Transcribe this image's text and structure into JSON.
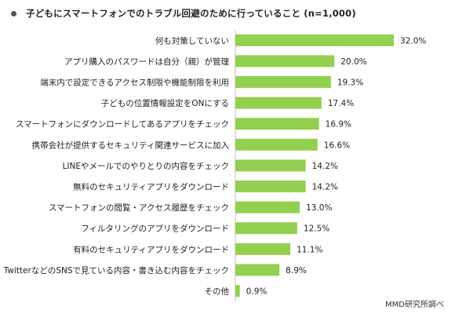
{
  "title": "子どもにスマートフォンでのトラブル回避のために行っていること (n=1,000)",
  "source": "MMD研究所調べ",
  "chart_data": {
    "type": "bar",
    "orientation": "horizontal",
    "bar_color": "#92d050",
    "value_suffix": "%",
    "categories": [
      "何も対策していない",
      "アプリ購入のパスワードは自分（親）が管理",
      "端末内で設定できるアクセス制限や機能制限を利用",
      "子どもの位置情報設定をONにする",
      "スマートフォンにダウンロードしてあるアプリをチェック",
      "携帯会社が提供するセキュリティ関連サービスに加入",
      "LINEやメールでのやりとりの内容をチェック",
      "無料のセキュリティアプリをダウンロード",
      "スマートフォンの閲覧・アクセス履歴をチェック",
      "フィルタリングのアプリをダウンロード",
      "有料のセキュリティアプリをダウンロード",
      "TwitterなどのSNSで見ている内容・書き込む内容をチェック",
      "その他"
    ],
    "values": [
      32.0,
      20.0,
      19.3,
      17.4,
      16.9,
      16.6,
      14.2,
      14.2,
      13.0,
      12.5,
      11.1,
      8.9,
      0.9
    ],
    "labels": [
      "32.0%",
      "20.0%",
      "19.3%",
      "17.4%",
      "16.9%",
      "16.6%",
      "14.2%",
      "14.2%",
      "13.0%",
      "12.5%",
      "11.1%",
      "8.9%",
      "0.9%"
    ],
    "xlim": [
      0,
      32
    ]
  }
}
